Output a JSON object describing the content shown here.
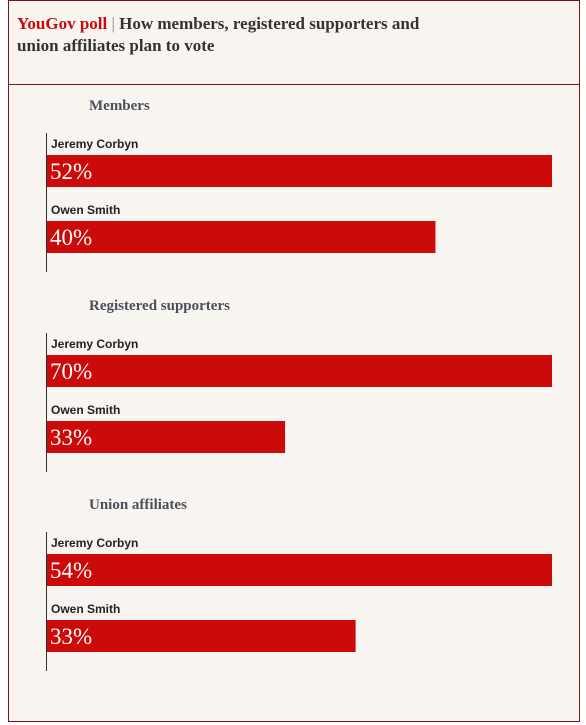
{
  "header": {
    "source": "YouGov poll",
    "separator": "|",
    "title": "How members, registered supporters and union affiliates plan to vote"
  },
  "chart_data": [
    {
      "type": "bar",
      "orientation": "horizontal",
      "title": "Members",
      "categories": [
        "Jeremy Corbyn",
        "Owen Smith"
      ],
      "values": [
        52,
        40
      ],
      "value_labels": [
        "52%",
        "40%"
      ],
      "color": "#cc0a0a"
    },
    {
      "type": "bar",
      "orientation": "horizontal",
      "title": "Registered supporters",
      "categories": [
        "Jeremy Corbyn",
        "Owen Smith"
      ],
      "values": [
        70,
        33
      ],
      "value_labels": [
        "70%",
        "33%"
      ],
      "color": "#cc0a0a"
    },
    {
      "type": "bar",
      "orientation": "horizontal",
      "title": "Union affiliates",
      "categories": [
        "Jeremy Corbyn",
        "Owen Smith"
      ],
      "values": [
        54,
        33
      ],
      "value_labels": [
        "54%",
        "33%"
      ],
      "color": "#cc0a0a"
    }
  ]
}
